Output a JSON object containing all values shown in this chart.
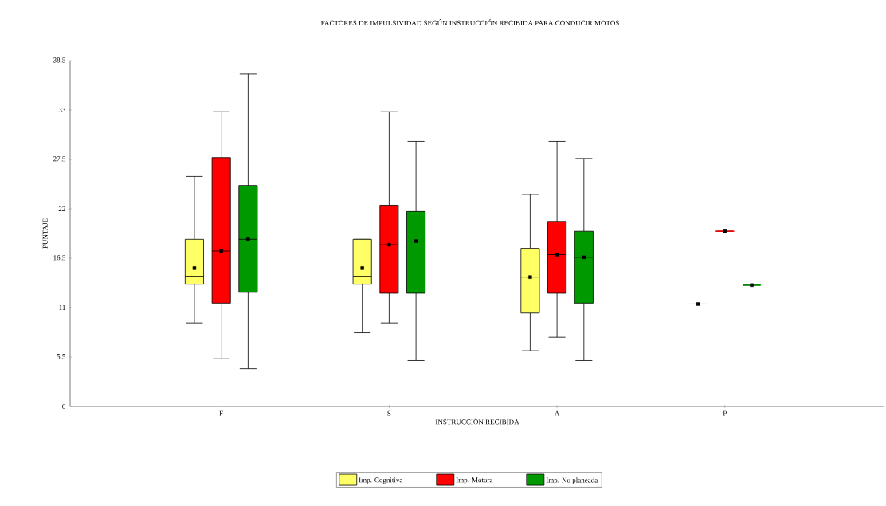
{
  "chart_data": {
    "type": "box",
    "title": "FACTORES DE IMPULSIVIDAD SEGÚN INSTRUCCIÓN RECIBIDA PARA CONDUCIR MOTOS",
    "xlabel": "INSTRUCCIÓN RECIBIDA",
    "ylabel": "PUNTAJE",
    "categories": [
      "F",
      "S",
      "A",
      "P"
    ],
    "ylim": [
      0,
      38.5
    ],
    "yticks": [
      {
        "value": 0,
        "label": "0"
      },
      {
        "value": 5.5,
        "label": "5,5"
      },
      {
        "value": 11,
        "label": "11"
      },
      {
        "value": 16.5,
        "label": "16,5"
      },
      {
        "value": 22,
        "label": "22"
      },
      {
        "value": 27.5,
        "label": "27,5"
      },
      {
        "value": 33,
        "label": "33"
      },
      {
        "value": 38.5,
        "label": "38,5"
      }
    ],
    "legend": "bottom",
    "series": [
      {
        "name": "Imp. Cognitiva",
        "color": "#ffff66",
        "boxes": [
          {
            "low": 9.3,
            "q1": 13.6,
            "median": 14.5,
            "q3": 18.6,
            "high": 25.6,
            "mean": 15.4
          },
          {
            "low": 8.2,
            "q1": 13.6,
            "median": 14.5,
            "q3": 18.6,
            "high": 18.6,
            "mean": 15.4
          },
          {
            "low": 6.2,
            "q1": 10.4,
            "median": 14.4,
            "q3": 17.6,
            "high": 23.6,
            "mean": 14.4
          },
          {
            "low": 11.4,
            "q1": 11.4,
            "median": 11.4,
            "q3": 11.4,
            "high": 11.4,
            "mean": 11.4
          }
        ]
      },
      {
        "name": "Imp. Motora",
        "color": "#ff0000",
        "boxes": [
          {
            "low": 5.3,
            "q1": 11.5,
            "median": 17.3,
            "q3": 27.7,
            "high": 32.8,
            "mean": 17.3
          },
          {
            "low": 9.3,
            "q1": 12.6,
            "median": 18,
            "q3": 22.4,
            "high": 32.8,
            "mean": 18
          },
          {
            "low": 7.7,
            "q1": 12.6,
            "median": 16.9,
            "q3": 20.6,
            "high": 29.5,
            "mean": 16.9
          },
          {
            "low": 19.5,
            "q1": 19.5,
            "median": 19.5,
            "q3": 19.5,
            "high": 19.5,
            "mean": 19.5
          }
        ]
      },
      {
        "name": "Imp. No planeada",
        "color": "#009900",
        "boxes": [
          {
            "low": 4.2,
            "q1": 12.7,
            "median": 18.6,
            "q3": 24.6,
            "high": 37,
            "mean": 18.6
          },
          {
            "low": 5.1,
            "q1": 12.6,
            "median": 18.4,
            "q3": 21.7,
            "high": 29.5,
            "mean": 18.4
          },
          {
            "low": 5.1,
            "q1": 11.5,
            "median": 16.6,
            "q3": 19.5,
            "high": 27.6,
            "mean": 16.6
          },
          {
            "low": 13.5,
            "q1": 13.5,
            "median": 13.5,
            "q3": 13.5,
            "high": 13.5,
            "mean": 13.5
          }
        ]
      }
    ]
  }
}
